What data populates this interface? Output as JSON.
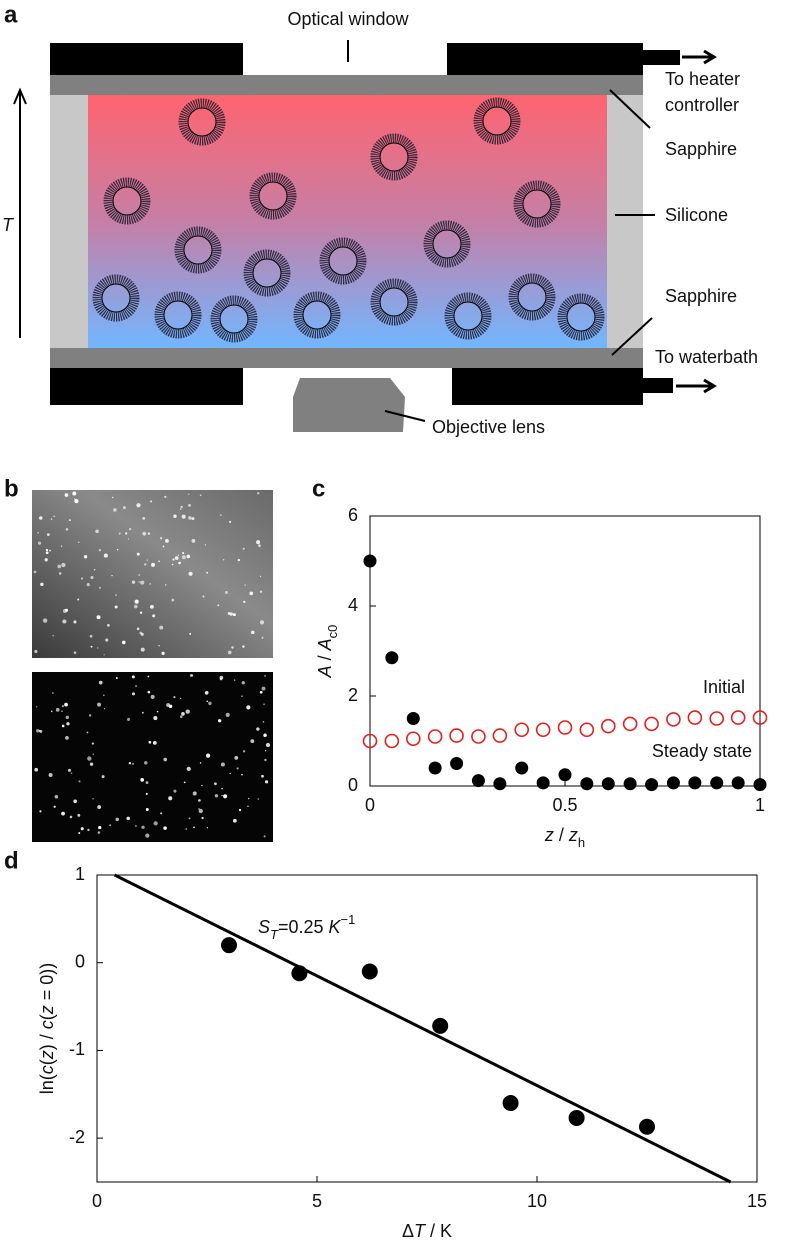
{
  "panel_labels": [
    "a",
    "b",
    "c",
    "d"
  ],
  "diagram": {
    "optical_window": "Optical window",
    "heater": [
      "To heater",
      "controller"
    ],
    "sapphire_top": "Sapphire",
    "silicone": "Silicone",
    "sapphire_bottom": "Sapphire",
    "waterbath": "To waterbath",
    "objective": "Objective lens",
    "temperature_axis": "T"
  },
  "chart_data": [
    {
      "type": "scatter",
      "xlabel": [
        "z",
        " / ",
        "z",
        "h"
      ],
      "ylabel": [
        "A",
        " / ",
        "A",
        "c0"
      ],
      "x": [
        0,
        0.056,
        0.111,
        0.167,
        0.222,
        0.278,
        0.333,
        0.389,
        0.444,
        0.5,
        0.556,
        0.611,
        0.667,
        0.722,
        0.778,
        0.833,
        0.889,
        0.944,
        1
      ],
      "series": [
        {
          "name": "Initial",
          "color": "#e0201e",
          "marker": "open",
          "values": [
            1.0,
            1.0,
            1.05,
            1.1,
            1.12,
            1.1,
            1.12,
            1.25,
            1.25,
            1.3,
            1.25,
            1.33,
            1.38,
            1.38,
            1.48,
            1.52,
            1.5,
            1.52,
            1.52
          ]
        },
        {
          "name": "Steady state",
          "color": "#000000",
          "marker": "filled",
          "values": [
            5.0,
            2.85,
            1.5,
            0.4,
            0.5,
            0.12,
            0.05,
            0.4,
            0.07,
            0.25,
            0.05,
            0.05,
            0.05,
            0.03,
            0.07,
            0.07,
            0.07,
            0.07,
            0.03
          ]
        }
      ],
      "xlim": [
        0,
        1
      ],
      "ylim": [
        0,
        6
      ],
      "xticks": [
        0,
        0.5,
        1
      ],
      "yticks": [
        0,
        2,
        4,
        6
      ]
    },
    {
      "type": "scatter",
      "xlabel": [
        "Δ",
        "T",
        " / K"
      ],
      "ylabel": [
        "ln(",
        "c",
        "(",
        "z",
        ") / ",
        "c",
        "(",
        "z",
        " = 0))"
      ],
      "annotation": [
        "S",
        "T",
        "=0.25 ",
        "K",
        "−1"
      ],
      "x": [
        3.0,
        4.6,
        6.2,
        7.8,
        9.4,
        10.9,
        12.5
      ],
      "series": [
        {
          "color": "#000000",
          "marker": "filled",
          "values": [
            0.2,
            -0.12,
            -0.1,
            -0.72,
            -1.6,
            -1.77,
            -1.87
          ]
        }
      ],
      "fit_line": {
        "x": [
          0.4,
          14.4
        ],
        "y": [
          1,
          -2.5
        ]
      },
      "xlim": [
        0,
        15
      ],
      "ylim": [
        -2.5,
        1
      ],
      "xticks": [
        0,
        5,
        10,
        15
      ],
      "yticks": [
        -2,
        -1,
        0,
        1
      ]
    }
  ]
}
